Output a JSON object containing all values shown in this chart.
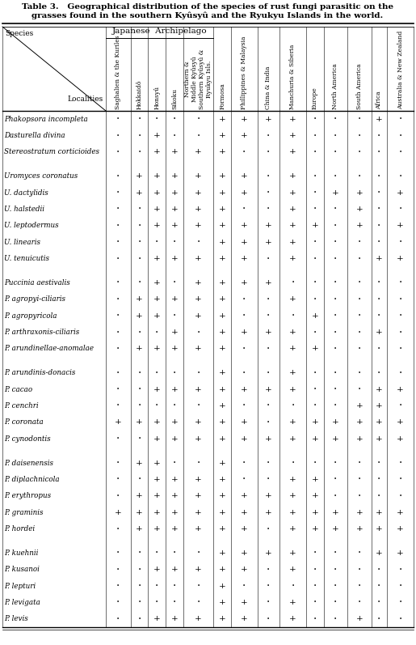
{
  "title1": "Table 3.   Geographical distribution of the species of rust fungi parasitic on the",
  "title2": "grasses found in the southern Kyûsyû and the Ryukyu Islands in the world.",
  "col_headers": [
    "Saghalien & the Kuriles",
    "Hokkaidô",
    "Honsyû",
    "Sikoku",
    "Northern &\nMiddle Kyûsyû\nSouthern Kyûsyû &\nRyukyu Isls.",
    "Formosa",
    "Phillippines & Malaysia",
    "China & India",
    "Manchuria & Siberia",
    "Europe",
    "North America",
    "South America",
    "Africa",
    "Australia & New Zealand"
  ],
  "group_label": "Japanese  Archipelago",
  "species": [
    "Phakopsora incompleta",
    "Dasturella divina",
    "Stereostratum corticioides",
    "",
    "Uromyces coronatus",
    "U. dactylidis",
    "U. halstedii",
    "U. leptodermus",
    "U. linearis",
    "U. tenuicutis",
    "",
    "Puccinia aestivalis",
    "P. agropyi-ciliaris",
    "P. agropyricola",
    "P. arthraxonis-ciliaris",
    "P. arundinellae-anomalae",
    "",
    "P. arundinis-donacis",
    "P. cacao",
    "P. cenchri",
    "P. coronata",
    "P. cynodontis",
    "",
    "P. daisenensis",
    "P. diplachnicola",
    "P. erythropus",
    "P. graminis",
    "P. hordei",
    "",
    "P. kuehnii",
    "P. kusanoi",
    "P. lepturi",
    "P. levigata",
    "P. levis"
  ],
  "rows": [
    [
      ".",
      ".",
      ".",
      ".",
      ".",
      "+",
      "+",
      "+",
      "+",
      ".",
      ".",
      ".",
      "+",
      "."
    ],
    [
      ".",
      ".",
      "+",
      ".",
      ".",
      "+",
      "+",
      ".",
      "+",
      ".",
      ".",
      ".",
      ".",
      "."
    ],
    [
      ".",
      ".",
      "+",
      "+",
      "+",
      "+",
      ".",
      ".",
      "+",
      ".",
      ".",
      ".",
      ".",
      "."
    ],
    null,
    [
      ".",
      "+",
      "+",
      "+",
      "+",
      "+",
      "+",
      ".",
      "+",
      ".",
      ".",
      ".",
      ".",
      "."
    ],
    [
      ".",
      "+",
      "+",
      "+",
      "+",
      "+",
      "+",
      ".",
      "+",
      ".",
      "+",
      "+",
      ".",
      "+"
    ],
    [
      ".",
      ".",
      "+",
      "+",
      "+",
      "+",
      ".",
      ".",
      "+",
      ".",
      ".",
      "+",
      ".",
      "."
    ],
    [
      ".",
      ".",
      "+",
      "+",
      "+",
      "+",
      "+",
      "+",
      "+",
      "+",
      ".",
      "+",
      ".",
      "+"
    ],
    [
      ".",
      ".",
      ".",
      ".",
      ".",
      "+",
      "+",
      "+",
      "+",
      ".",
      ".",
      ".",
      ".",
      "."
    ],
    [
      ".",
      ".",
      "+",
      "+",
      "+",
      "+",
      "+",
      ".",
      "+",
      ".",
      ".",
      ".",
      "+",
      "+"
    ],
    null,
    [
      ".",
      ".",
      "+",
      ".",
      "+",
      "+",
      "+",
      "+",
      ".",
      ".",
      ".",
      ".",
      ".",
      "."
    ],
    [
      ".",
      "+",
      "+",
      "+",
      "+",
      "+",
      ".",
      ".",
      "+",
      ".",
      ".",
      ".",
      ".",
      "."
    ],
    [
      ".",
      "+",
      "+",
      ".",
      "+",
      "+",
      ".",
      ".",
      ".",
      "+",
      ".",
      ".",
      ".",
      "."
    ],
    [
      ".",
      ".",
      ".",
      "+",
      ".",
      "+",
      "+",
      "+",
      "+",
      ".",
      ".",
      ".",
      "+",
      "."
    ],
    [
      ".",
      "+",
      "+",
      "+",
      "+",
      "+",
      ".",
      ".",
      "+",
      "+",
      ".",
      ".",
      ".",
      "."
    ],
    null,
    [
      ".",
      ".",
      ".",
      ".",
      ".",
      "+",
      ".",
      ".",
      "+",
      ".",
      ".",
      ".",
      ".",
      "."
    ],
    [
      ".",
      ".",
      "+",
      "+",
      "+",
      "+",
      "+",
      "+",
      "+",
      ".",
      ".",
      ".",
      "+",
      "+"
    ],
    [
      ".",
      ".",
      ".",
      ".",
      ".",
      "+",
      ".",
      ".",
      ".",
      ".",
      ".",
      "+",
      "+",
      "."
    ],
    [
      "+",
      "+",
      "+",
      "+",
      "+",
      "+",
      "+",
      ".",
      "+",
      "+",
      "+",
      "+",
      "+",
      "+"
    ],
    [
      ".",
      ".",
      "+",
      "+",
      "+",
      "+",
      "+",
      "+",
      "+",
      "+",
      "+",
      "+",
      "+",
      "+"
    ],
    null,
    [
      ".",
      "+",
      "+",
      ".",
      ".",
      "+",
      ".",
      ".",
      ".",
      ".",
      ".",
      ".",
      ".",
      "."
    ],
    [
      ".",
      ".",
      "+",
      "+",
      "+",
      "+",
      ".",
      ".",
      "+",
      "+",
      ".",
      ".",
      ".",
      "."
    ],
    [
      ".",
      "+",
      "+",
      "+",
      "+",
      "+",
      "+",
      "+",
      "+",
      "+",
      ".",
      ".",
      ".",
      "."
    ],
    [
      "+",
      "+",
      "+",
      "+",
      "+",
      "+",
      "+",
      "+",
      "+",
      "+",
      "+",
      "+",
      "+",
      "+"
    ],
    [
      ".",
      "+",
      "+",
      "+",
      "+",
      "+",
      "+",
      ".",
      "+",
      "+",
      "+",
      "+",
      "+",
      "+"
    ],
    null,
    [
      ".",
      ".",
      ".",
      ".",
      ".",
      "+",
      "+",
      "+",
      "+",
      ".",
      ".",
      ".",
      "+",
      "+"
    ],
    [
      ".",
      ".",
      "+",
      "+",
      "+",
      "+",
      "+",
      ".",
      "+",
      ".",
      ".",
      ".",
      ".",
      "."
    ],
    [
      ".",
      ".",
      ".",
      ".",
      ".",
      "+",
      ".",
      ".",
      ".",
      ".",
      ".",
      ".",
      ".",
      "."
    ],
    [
      ".",
      ".",
      ".",
      ".",
      ".",
      "+",
      "+",
      ".",
      "+",
      ".",
      ".",
      ".",
      ".",
      "."
    ],
    [
      ".",
      ".",
      "+",
      "+",
      "+",
      "+",
      "+",
      ".",
      "+",
      ".",
      ".",
      "+",
      ".",
      "."
    ]
  ]
}
